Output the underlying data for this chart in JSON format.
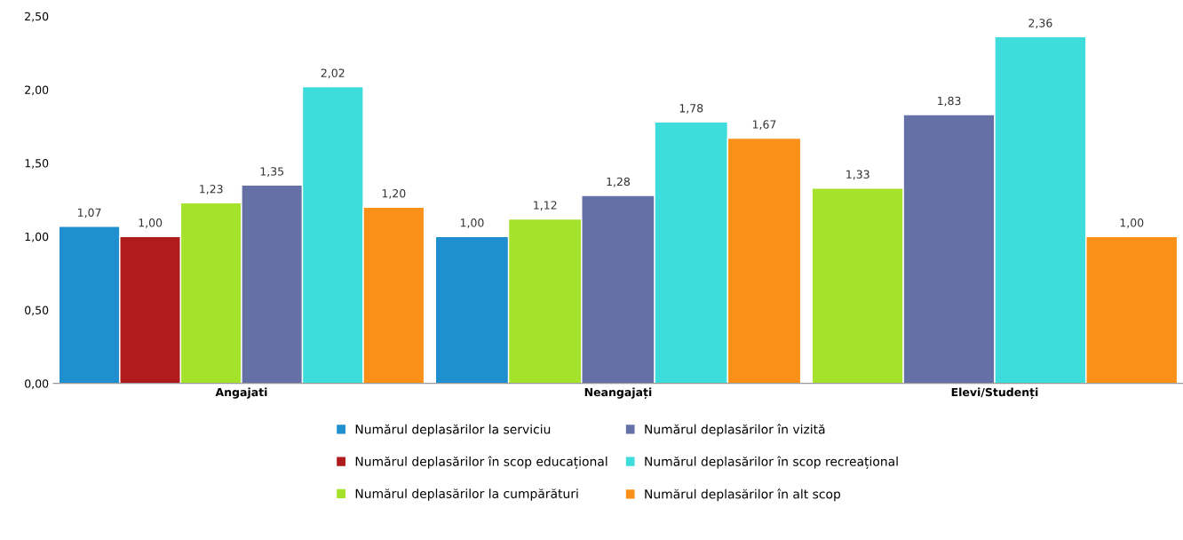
{
  "chart_data": {
    "type": "bar",
    "categories": [
      "Angajati",
      "Neangajați",
      "Elevi/Studenți"
    ],
    "series": [
      {
        "name": "Numărul deplasărilor la serviciu",
        "color": "#1f8fcf",
        "values": [
          1.07,
          1.0,
          null
        ],
        "value_labels": [
          "1,07",
          "1,00",
          null
        ]
      },
      {
        "name": "Numărul deplasărilor în scop educațional",
        "color": "#b01c1c",
        "values": [
          1.0,
          null,
          null
        ],
        "value_labels": [
          "1,00",
          null,
          null
        ]
      },
      {
        "name": "Numărul deplasărilor la cumpărături",
        "color": "#a4e22c",
        "values": [
          1.23,
          1.12,
          1.33
        ],
        "value_labels": [
          "1,23",
          "1,12",
          "1,33"
        ]
      },
      {
        "name": "Numărul deplasărilor în vizită",
        "color": "#6470a6",
        "values": [
          1.35,
          1.28,
          1.83
        ],
        "value_labels": [
          "1,35",
          "1,28",
          "1,83"
        ]
      },
      {
        "name": "Numărul deplasărilor în scop recreațional",
        "color": "#3fdcdc",
        "values": [
          2.02,
          1.78,
          2.36
        ],
        "value_labels": [
          "2,02",
          "1,78",
          "2,36"
        ]
      },
      {
        "name": "Numărul deplasărilor în alt scop",
        "color": "#fa9018",
        "values": [
          1.2,
          1.67,
          1.0
        ],
        "value_labels": [
          "1,20",
          "1,67",
          "1,00"
        ]
      }
    ],
    "ylim": [
      0,
      2.5
    ],
    "yticks": [
      {
        "value": 0,
        "label": "0,00"
      },
      {
        "value": 0.5,
        "label": "0,50"
      },
      {
        "value": 1,
        "label": "1,00"
      },
      {
        "value": 1.5,
        "label": "1,50"
      },
      {
        "value": 2,
        "label": "2,00"
      },
      {
        "value": 2.5,
        "label": "2,50"
      }
    ],
    "grid": false,
    "legend": "bottom"
  }
}
